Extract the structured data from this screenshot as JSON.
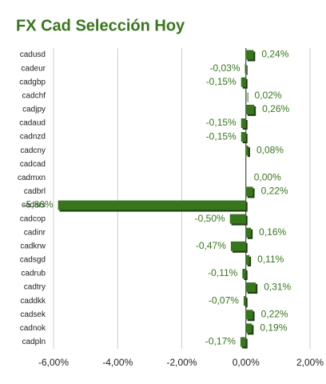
{
  "chart_data": {
    "type": "bar",
    "orientation": "horizontal",
    "title": "FX Cad Selección Hoy",
    "categories": [
      "cadusd",
      "cadeur",
      "cadgbp",
      "cadchf",
      "cadjpy",
      "cadaud",
      "cadnzd",
      "cadcny",
      "cadcad",
      "cadmxn",
      "cadbrl",
      "cadars",
      "cadcop",
      "cadinr",
      "cadkrw",
      "cadsgd",
      "cadrub",
      "cadtry",
      "caddkk",
      "cadsek",
      "cadnok",
      "cadpln"
    ],
    "values": [
      0.24,
      -0.03,
      -0.15,
      0.02,
      0.26,
      -0.15,
      -0.15,
      0.08,
      null,
      0.0,
      0.22,
      -5.86,
      -0.5,
      0.16,
      -0.47,
      0.11,
      -0.11,
      0.31,
      -0.07,
      0.22,
      0.19,
      -0.17
    ],
    "value_labels": [
      "0,24%",
      "-0,03%",
      "-0,15%",
      "0,02%",
      "0,26%",
      "-0,15%",
      "-0,15%",
      "0,08%",
      null,
      "0,00%",
      "0,22%",
      "-5,86%",
      "-0,50%",
      "0,16%",
      "-0,47%",
      "0,11%",
      "-0,11%",
      "0,31%",
      "-0,07%",
      "0,22%",
      "0,19%",
      "-0,17%"
    ],
    "color": "#38761d",
    "xlim": [
      -6,
      2
    ],
    "xticks": [
      {
        "value": -6,
        "label": "-6,00%"
      },
      {
        "value": -4,
        "label": "-4,00%"
      },
      {
        "value": -2,
        "label": "-2,00%"
      },
      {
        "value": 0,
        "label": "0,00%"
      },
      {
        "value": 2,
        "label": "2,00%"
      }
    ],
    "grid": true
  }
}
